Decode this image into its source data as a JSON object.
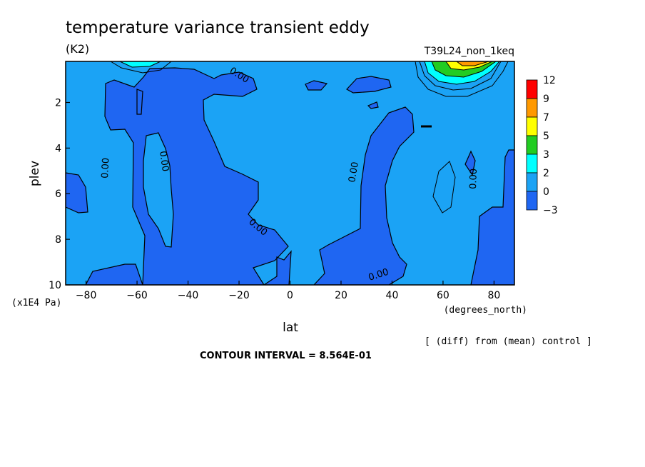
{
  "chart_data": {
    "type": "contour",
    "title": "temperature variance transient eddy",
    "units": "(K2)",
    "run_label": "T39L24_non_1keq",
    "xlabel": "lat",
    "xunits": "(degrees_north)",
    "ylabel": "plev",
    "yunits": "(x1E4 Pa)",
    "xlim": [
      -88,
      88
    ],
    "ylim": [
      10,
      0.2
    ],
    "x_ticks": [
      -80,
      -60,
      -40,
      -20,
      0,
      20,
      40,
      60,
      80
    ],
    "x_tick_labels": [
      "-80",
      "-60",
      "-40",
      "-20",
      "0",
      "20",
      "40",
      "60",
      "80"
    ],
    "y_ticks": [
      2,
      4,
      6,
      8,
      10
    ],
    "y_tick_labels": [
      "2",
      "4",
      "6",
      "8",
      "10"
    ],
    "colorbar": {
      "levels": [
        {
          "label": "12",
          "color": "#ff0000"
        },
        {
          "label": "9",
          "color": "#ff9900"
        },
        {
          "label": "7",
          "color": "#ffff00"
        },
        {
          "label": "5",
          "color": "#22cc22"
        },
        {
          "label": "3",
          "color": "#00ffff"
        },
        {
          "label": "2",
          "color": "#1ba3f5"
        },
        {
          "label": "0",
          "color": "#1f66f2"
        },
        {
          "label": "-3",
          "color": ""
        }
      ]
    },
    "contour_labels": [
      "0.00",
      "0.00",
      "0.00",
      "0.00",
      "0.00",
      "0.00",
      "0.00"
    ],
    "background_color": "#1ba3f5",
    "negative_color": "#1f66f2",
    "diff_note": "[ (diff) from (mean) control ]",
    "contour_interval": "CONTOUR INTERVAL = 8.564E-01"
  }
}
